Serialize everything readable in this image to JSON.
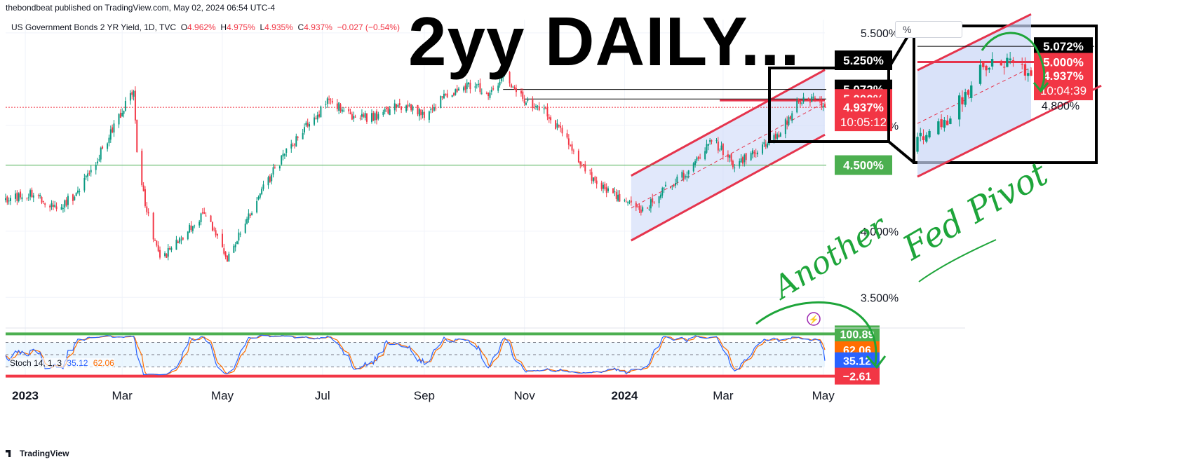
{
  "header": {
    "publisher": "thebondbeat published on TradingView.com, May 02, 2024 06:54 UTC-4",
    "symbol": "US Government Bonds 2 YR Yield, 1D, TVC",
    "ohlc": {
      "o_label": "O",
      "o": "4.962%",
      "h_label": "H",
      "h": "4.975%",
      "l_label": "L",
      "l": "4.935%",
      "c_label": "C",
      "c": "4.937%",
      "chg": "−0.027 (−0.54%)"
    },
    "headline": "2yy DAILY...",
    "scale_unit": "%"
  },
  "footer": {
    "brand": "TradingView"
  },
  "colors": {
    "up": "#089981",
    "down": "#f23645",
    "channel_line": "#e5344d",
    "channel_fill": "#c9d6f7",
    "green": "#4caf50",
    "box": "#000000",
    "stoch_k": "#2962ff",
    "stoch_d": "#ff6d00",
    "handwriting": "#1ea53a"
  },
  "chart_data": {
    "type": "candlestick",
    "series_name": "US Government Bonds 2 YR Yield",
    "x_range": [
      "2022-12-20",
      "2024-05-02"
    ],
    "y_range": [
      3.3,
      5.6
    ],
    "x_ticks": [
      {
        "label": "2023",
        "date": "2023-01-01"
      },
      {
        "label": "Mar",
        "date": "2023-03-01"
      },
      {
        "label": "May",
        "date": "2023-05-01"
      },
      {
        "label": "Jul",
        "date": "2023-07-01"
      },
      {
        "label": "Sep",
        "date": "2023-09-01"
      },
      {
        "label": "Nov",
        "date": "2023-11-01"
      },
      {
        "label": "2024",
        "date": "2024-01-01"
      },
      {
        "label": "Mar",
        "date": "2024-03-01"
      },
      {
        "label": "May",
        "date": "2024-05-01"
      }
    ],
    "y_ticks": [
      {
        "label": "5.500%",
        "value": 5.5
      },
      {
        "label": "4.800%",
        "value": 4.8
      },
      {
        "label": "4.000%",
        "value": 4.0
      },
      {
        "label": "3.500%",
        "value": 3.5
      }
    ],
    "closes": [
      {
        "date": "2022-12-20",
        "close": 4.25
      },
      {
        "date": "2023-01-06",
        "close": 4.28
      },
      {
        "date": "2023-01-20",
        "close": 4.17
      },
      {
        "date": "2023-02-03",
        "close": 4.3
      },
      {
        "date": "2023-02-17",
        "close": 4.62
      },
      {
        "date": "2023-03-02",
        "close": 4.94
      },
      {
        "date": "2023-03-08",
        "close": 5.05
      },
      {
        "date": "2023-03-10",
        "close": 4.6
      },
      {
        "date": "2023-03-15",
        "close": 4.2
      },
      {
        "date": "2023-03-24",
        "close": 3.77
      },
      {
        "date": "2023-04-06",
        "close": 3.95
      },
      {
        "date": "2023-04-20",
        "close": 4.15
      },
      {
        "date": "2023-05-04",
        "close": 3.8
      },
      {
        "date": "2023-05-18",
        "close": 4.15
      },
      {
        "date": "2023-06-01",
        "close": 4.45
      },
      {
        "date": "2023-06-15",
        "close": 4.7
      },
      {
        "date": "2023-07-06",
        "close": 5.0
      },
      {
        "date": "2023-07-20",
        "close": 4.85
      },
      {
        "date": "2023-08-03",
        "close": 4.87
      },
      {
        "date": "2023-08-17",
        "close": 4.95
      },
      {
        "date": "2023-09-01",
        "close": 4.88
      },
      {
        "date": "2023-09-14",
        "close": 5.02
      },
      {
        "date": "2023-09-28",
        "close": 5.1
      },
      {
        "date": "2023-10-12",
        "close": 5.05
      },
      {
        "date": "2023-10-19",
        "close": 5.2
      },
      {
        "date": "2023-11-02",
        "close": 4.98
      },
      {
        "date": "2023-11-16",
        "close": 4.88
      },
      {
        "date": "2023-12-01",
        "close": 4.6
      },
      {
        "date": "2023-12-13",
        "close": 4.4
      },
      {
        "date": "2023-12-28",
        "close": 4.25
      },
      {
        "date": "2024-01-12",
        "close": 4.15
      },
      {
        "date": "2024-01-26",
        "close": 4.33
      },
      {
        "date": "2024-02-09",
        "close": 4.45
      },
      {
        "date": "2024-02-23",
        "close": 4.7
      },
      {
        "date": "2024-03-08",
        "close": 4.5
      },
      {
        "date": "2024-03-22",
        "close": 4.62
      },
      {
        "date": "2024-04-05",
        "close": 4.75
      },
      {
        "date": "2024-04-16",
        "close": 4.98
      },
      {
        "date": "2024-04-25",
        "close": 4.99
      },
      {
        "date": "2024-05-02",
        "close": 4.937
      }
    ],
    "price_tags": [
      {
        "label": "5.250%",
        "value": 5.25,
        "style": "black"
      },
      {
        "label": "5.072%",
        "value": 5.072,
        "style": "black"
      },
      {
        "label": "5.000%",
        "value": 5.0,
        "style": "red"
      },
      {
        "label": "4.937%",
        "value": 4.937,
        "style": "red",
        "countdown": "10:05:12"
      },
      {
        "label": "4.500%",
        "value": 4.5,
        "style": "green"
      }
    ],
    "horizontal_lines": [
      {
        "value": 5.072,
        "color": "#000000"
      },
      {
        "value": 5.0,
        "color": "#000000"
      },
      {
        "value": 4.5,
        "color": "#4caf50"
      },
      {
        "value": 4.937,
        "color": "#f23645",
        "dotted": true
      }
    ],
    "regression_channel": {
      "start_date": "2024-01-05",
      "end_date": "2024-05-02",
      "upper": [
        4.42,
        5.22
      ],
      "lower": [
        3.93,
        4.73
      ]
    },
    "stochastic": {
      "label": "Stoch",
      "params": "14, 1, 3",
      "k": "35.12",
      "d": "62.06",
      "y_range": [
        -5,
        105
      ],
      "tags": [
        {
          "label": "100.89",
          "value": 100.89,
          "color": "#4caf50"
        },
        {
          "label": "62.06",
          "value": 62.06,
          "color": "#ff6d00"
        },
        {
          "label": "35.12",
          "value": 35.12,
          "color": "#2962ff"
        },
        {
          "label": "−2.61",
          "value": -2.61,
          "color": "#f23645"
        }
      ]
    },
    "inset": {
      "price_tags": [
        {
          "label": "5.072%",
          "value": 5.072,
          "style": "black"
        },
        {
          "label": "5.000%",
          "value": 5.0,
          "style": "red"
        },
        {
          "label": "4.937%",
          "value": 4.937,
          "style": "red",
          "countdown": "10:04:39"
        }
      ],
      "y_tick": {
        "label": "4.800%",
        "value": 4.8
      }
    },
    "annotation_text": [
      "Another",
      "Fed Pivot"
    ]
  }
}
